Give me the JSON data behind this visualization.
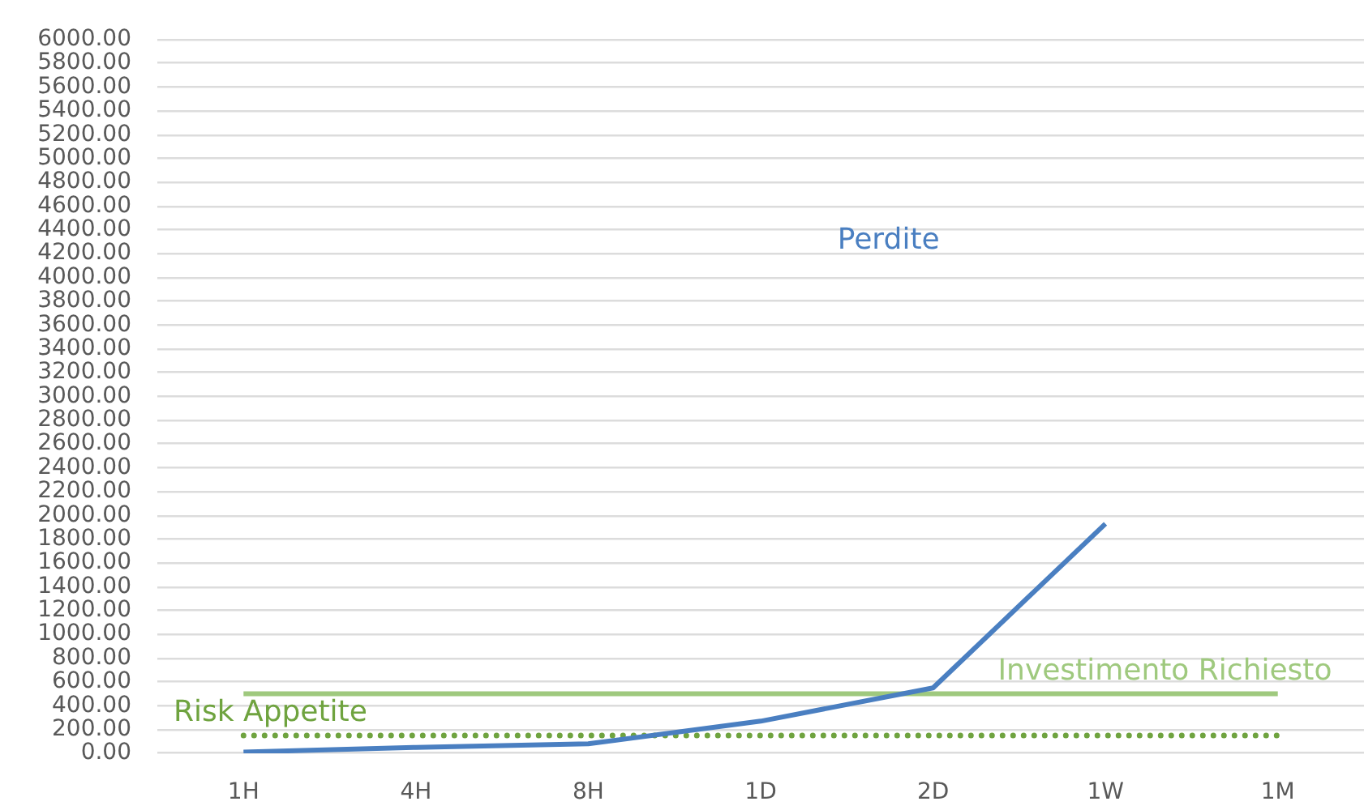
{
  "chart_data": {
    "type": "line",
    "categories": [
      "1H",
      "4H",
      "8H",
      "1D",
      "2D",
      "1W",
      "1M"
    ],
    "ylim": [
      0,
      6000
    ],
    "yticks": [
      {
        "value": 0,
        "label": "0.00"
      },
      {
        "value": 200,
        "label": "200.00"
      },
      {
        "value": 400,
        "label": "400.00"
      },
      {
        "value": 600,
        "label": "600.00"
      },
      {
        "value": 800,
        "label": "800.00"
      },
      {
        "value": 1000,
        "label": "1000.00"
      },
      {
        "value": 1200,
        "label": "1200.00"
      },
      {
        "value": 1400,
        "label": "1400.00"
      },
      {
        "value": 1600,
        "label": "1600.00"
      },
      {
        "value": 1800,
        "label": "1800.00"
      },
      {
        "value": 2000,
        "label": "2000.00"
      },
      {
        "value": 2200,
        "label": "2200.00"
      },
      {
        "value": 2400,
        "label": "2400.00"
      },
      {
        "value": 2600,
        "label": "2600.00"
      },
      {
        "value": 2800,
        "label": "2800.00"
      },
      {
        "value": 3000,
        "label": "3000.00"
      },
      {
        "value": 3200,
        "label": "3200.00"
      },
      {
        "value": 3400,
        "label": "3400.00"
      },
      {
        "value": 3600,
        "label": "3600.00"
      },
      {
        "value": 3800,
        "label": "3800.00"
      },
      {
        "value": 4000,
        "label": "4000.00"
      },
      {
        "value": 4200,
        "label": "4200.00"
      },
      {
        "value": 4400,
        "label": "4400.00"
      },
      {
        "value": 4600,
        "label": "4600.00"
      },
      {
        "value": 4800,
        "label": "4800.00"
      },
      {
        "value": 5000,
        "label": "5000.00"
      },
      {
        "value": 5200,
        "label": "5200.00"
      },
      {
        "value": 5400,
        "label": "5400.00"
      },
      {
        "value": 5600,
        "label": "5600.00"
      },
      {
        "value": 5800,
        "label": "5800.00"
      },
      {
        "value": 6000,
        "label": "6000.00"
      }
    ],
    "grid": "y",
    "marker": "none",
    "series": [
      {
        "name": "Perdite",
        "color": "#4a7fc1",
        "values": [
          10,
          50,
          80,
          270,
          550,
          1930,
          null
        ]
      },
      {
        "name": "Investimento Richiesto",
        "color": "#9fc97e",
        "values": [
          500,
          500,
          500,
          500,
          500,
          500,
          500
        ]
      },
      {
        "name": "Risk Appetite",
        "color": "#6fa33f",
        "line_style": "dotted",
        "values": [
          150,
          150,
          150,
          150,
          150,
          150,
          150
        ]
      }
    ]
  }
}
